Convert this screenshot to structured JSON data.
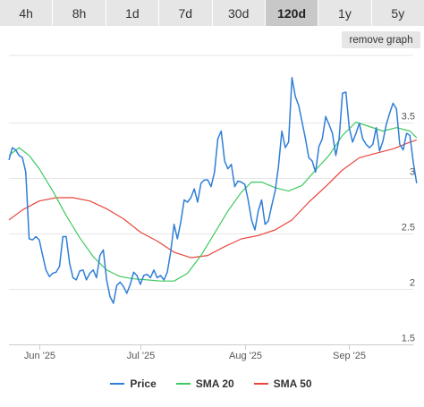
{
  "tabs": [
    {
      "label": "4h",
      "active": false
    },
    {
      "label": "8h",
      "active": false
    },
    {
      "label": "1d",
      "active": false
    },
    {
      "label": "7d",
      "active": false
    },
    {
      "label": "30d",
      "active": false
    },
    {
      "label": "120d",
      "active": true
    },
    {
      "label": "1y",
      "active": false
    },
    {
      "label": "5y",
      "active": false
    }
  ],
  "remove_graph_label": "remove graph",
  "colors": {
    "price": "#2f7ed8",
    "sma20": "#3ec960",
    "sma50": "#e8453c"
  },
  "chart_data": {
    "type": "line",
    "title": "",
    "xlabel": "",
    "ylabel": "",
    "grid": true,
    "legend_position": "bottom",
    "ylim": [
      1.5,
      4.1
    ],
    "y_ticks": [
      1.5,
      2,
      2.5,
      3,
      3.5
    ],
    "y_tick_labels": [
      "1.5",
      "2",
      "2.5",
      "3",
      "3.5"
    ],
    "x_range": [
      "2025-05-23",
      "2025-09-20"
    ],
    "x_ticks": [
      {
        "date": "2025-06-01",
        "label": "Jun '25"
      },
      {
        "date": "2025-07-01",
        "label": "Jul '25"
      },
      {
        "date": "2025-08-01",
        "label": "Aug '25"
      },
      {
        "date": "2025-09-01",
        "label": "Sep '25"
      }
    ],
    "series": [
      {
        "name": "Price",
        "points": [
          [
            "2025-05-23",
            3.16
          ],
          [
            "2025-05-24",
            3.27
          ],
          [
            "2025-05-25",
            3.25
          ],
          [
            "2025-05-26",
            3.2
          ],
          [
            "2025-05-27",
            3.18
          ],
          [
            "2025-05-28",
            3.05
          ],
          [
            "2025-05-29",
            2.45
          ],
          [
            "2025-05-30",
            2.44
          ],
          [
            "2025-05-31",
            2.47
          ],
          [
            "2025-06-01",
            2.44
          ],
          [
            "2025-06-02",
            2.3
          ],
          [
            "2025-06-03",
            2.17
          ],
          [
            "2025-06-04",
            2.11
          ],
          [
            "2025-06-05",
            2.14
          ],
          [
            "2025-06-06",
            2.15
          ],
          [
            "2025-06-07",
            2.2
          ],
          [
            "2025-06-08",
            2.47
          ],
          [
            "2025-06-09",
            2.47
          ],
          [
            "2025-06-10",
            2.23
          ],
          [
            "2025-06-11",
            2.1
          ],
          [
            "2025-06-12",
            2.08
          ],
          [
            "2025-06-13",
            2.16
          ],
          [
            "2025-06-14",
            2.17
          ],
          [
            "2025-06-15",
            2.08
          ],
          [
            "2025-06-16",
            2.14
          ],
          [
            "2025-06-17",
            2.17
          ],
          [
            "2025-06-18",
            2.1
          ],
          [
            "2025-06-19",
            2.3
          ],
          [
            "2025-06-20",
            2.35
          ],
          [
            "2025-06-21",
            2.08
          ],
          [
            "2025-06-22",
            1.93
          ],
          [
            "2025-06-23",
            1.87
          ],
          [
            "2025-06-24",
            2.03
          ],
          [
            "2025-06-25",
            2.06
          ],
          [
            "2025-06-26",
            2.02
          ],
          [
            "2025-06-27",
            1.96
          ],
          [
            "2025-06-28",
            2.04
          ],
          [
            "2025-06-29",
            2.15
          ],
          [
            "2025-06-30",
            2.12
          ],
          [
            "2025-07-01",
            2.04
          ],
          [
            "2025-07-02",
            2.12
          ],
          [
            "2025-07-03",
            2.13
          ],
          [
            "2025-07-04",
            2.1
          ],
          [
            "2025-07-05",
            2.17
          ],
          [
            "2025-07-06",
            2.1
          ],
          [
            "2025-07-07",
            2.12
          ],
          [
            "2025-07-08",
            2.08
          ],
          [
            "2025-07-09",
            2.15
          ],
          [
            "2025-07-10",
            2.33
          ],
          [
            "2025-07-11",
            2.58
          ],
          [
            "2025-07-12",
            2.45
          ],
          [
            "2025-07-13",
            2.6
          ],
          [
            "2025-07-14",
            2.8
          ],
          [
            "2025-07-15",
            2.78
          ],
          [
            "2025-07-16",
            2.82
          ],
          [
            "2025-07-17",
            2.9
          ],
          [
            "2025-07-18",
            2.78
          ],
          [
            "2025-07-19",
            2.95
          ],
          [
            "2025-07-20",
            2.98
          ],
          [
            "2025-07-21",
            2.98
          ],
          [
            "2025-07-22",
            2.92
          ],
          [
            "2025-07-23",
            3.05
          ],
          [
            "2025-07-24",
            3.35
          ],
          [
            "2025-07-25",
            3.42
          ],
          [
            "2025-07-26",
            3.15
          ],
          [
            "2025-07-27",
            3.08
          ],
          [
            "2025-07-28",
            3.12
          ],
          [
            "2025-07-29",
            2.92
          ],
          [
            "2025-07-30",
            2.97
          ],
          [
            "2025-07-31",
            2.96
          ],
          [
            "2025-08-01",
            2.94
          ],
          [
            "2025-08-02",
            2.8
          ],
          [
            "2025-08-03",
            2.62
          ],
          [
            "2025-08-04",
            2.53
          ],
          [
            "2025-08-05",
            2.7
          ],
          [
            "2025-08-06",
            2.8
          ],
          [
            "2025-08-07",
            2.58
          ],
          [
            "2025-08-08",
            2.61
          ],
          [
            "2025-08-09",
            2.75
          ],
          [
            "2025-08-10",
            2.88
          ],
          [
            "2025-08-11",
            3.1
          ],
          [
            "2025-08-12",
            3.42
          ],
          [
            "2025-08-13",
            3.27
          ],
          [
            "2025-08-14",
            3.32
          ],
          [
            "2025-08-15",
            3.9
          ],
          [
            "2025-08-16",
            3.73
          ],
          [
            "2025-08-17",
            3.65
          ],
          [
            "2025-08-18",
            3.5
          ],
          [
            "2025-08-19",
            3.35
          ],
          [
            "2025-08-20",
            3.18
          ],
          [
            "2025-08-21",
            3.15
          ],
          [
            "2025-08-22",
            3.05
          ],
          [
            "2025-08-23",
            3.28
          ],
          [
            "2025-08-24",
            3.35
          ],
          [
            "2025-08-25",
            3.55
          ],
          [
            "2025-08-26",
            3.48
          ],
          [
            "2025-08-27",
            3.4
          ],
          [
            "2025-08-28",
            3.2
          ],
          [
            "2025-08-29",
            3.35
          ],
          [
            "2025-08-30",
            3.76
          ],
          [
            "2025-08-31",
            3.77
          ],
          [
            "2025-09-01",
            3.45
          ],
          [
            "2025-09-02",
            3.32
          ],
          [
            "2025-09-03",
            3.4
          ],
          [
            "2025-09-04",
            3.49
          ],
          [
            "2025-09-05",
            3.35
          ],
          [
            "2025-09-06",
            3.3
          ],
          [
            "2025-09-07",
            3.27
          ],
          [
            "2025-09-08",
            3.3
          ],
          [
            "2025-09-09",
            3.45
          ],
          [
            "2025-09-10",
            3.24
          ],
          [
            "2025-09-11",
            3.33
          ],
          [
            "2025-09-12",
            3.48
          ],
          [
            "2025-09-13",
            3.58
          ],
          [
            "2025-09-14",
            3.67
          ],
          [
            "2025-09-15",
            3.62
          ],
          [
            "2025-09-16",
            3.3
          ],
          [
            "2025-09-17",
            3.25
          ],
          [
            "2025-09-18",
            3.4
          ],
          [
            "2025-09-19",
            3.38
          ],
          [
            "2025-09-20",
            3.14
          ],
          [
            "2025-09-21",
            2.95
          ]
        ]
      },
      {
        "name": "SMA 20",
        "points": [
          [
            "2025-05-23",
            3.2
          ],
          [
            "2025-05-26",
            3.27
          ],
          [
            "2025-05-29",
            3.2
          ],
          [
            "2025-06-01",
            3.08
          ],
          [
            "2025-06-05",
            2.88
          ],
          [
            "2025-06-09",
            2.66
          ],
          [
            "2025-06-13",
            2.46
          ],
          [
            "2025-06-17",
            2.29
          ],
          [
            "2025-06-21",
            2.17
          ],
          [
            "2025-06-25",
            2.11
          ],
          [
            "2025-06-29",
            2.09
          ],
          [
            "2025-07-03",
            2.08
          ],
          [
            "2025-07-07",
            2.07
          ],
          [
            "2025-07-11",
            2.07
          ],
          [
            "2025-07-15",
            2.14
          ],
          [
            "2025-07-19",
            2.3
          ],
          [
            "2025-07-23",
            2.5
          ],
          [
            "2025-07-27",
            2.7
          ],
          [
            "2025-07-31",
            2.87
          ],
          [
            "2025-08-03",
            2.96
          ],
          [
            "2025-08-06",
            2.96
          ],
          [
            "2025-08-10",
            2.91
          ],
          [
            "2025-08-14",
            2.88
          ],
          [
            "2025-08-18",
            2.93
          ],
          [
            "2025-08-22",
            3.07
          ],
          [
            "2025-08-26",
            3.2
          ],
          [
            "2025-08-30",
            3.38
          ],
          [
            "2025-09-03",
            3.5
          ],
          [
            "2025-09-07",
            3.46
          ],
          [
            "2025-09-11",
            3.42
          ],
          [
            "2025-09-15",
            3.45
          ],
          [
            "2025-09-19",
            3.42
          ],
          [
            "2025-09-21",
            3.36
          ]
        ]
      },
      {
        "name": "SMA 50",
        "points": [
          [
            "2025-05-23",
            2.62
          ],
          [
            "2025-05-27",
            2.71
          ],
          [
            "2025-06-01",
            2.79
          ],
          [
            "2025-06-06",
            2.82
          ],
          [
            "2025-06-11",
            2.82
          ],
          [
            "2025-06-16",
            2.79
          ],
          [
            "2025-06-21",
            2.72
          ],
          [
            "2025-06-26",
            2.63
          ],
          [
            "2025-07-01",
            2.51
          ],
          [
            "2025-07-06",
            2.43
          ],
          [
            "2025-07-11",
            2.33
          ],
          [
            "2025-07-16",
            2.28
          ],
          [
            "2025-07-21",
            2.3
          ],
          [
            "2025-07-26",
            2.38
          ],
          [
            "2025-07-31",
            2.45
          ],
          [
            "2025-08-05",
            2.48
          ],
          [
            "2025-08-10",
            2.53
          ],
          [
            "2025-08-15",
            2.62
          ],
          [
            "2025-08-20",
            2.78
          ],
          [
            "2025-08-25",
            2.92
          ],
          [
            "2025-08-30",
            3.07
          ],
          [
            "2025-09-04",
            3.18
          ],
          [
            "2025-09-09",
            3.22
          ],
          [
            "2025-09-14",
            3.26
          ],
          [
            "2025-09-19",
            3.32
          ],
          [
            "2025-09-21",
            3.34
          ]
        ]
      }
    ]
  }
}
